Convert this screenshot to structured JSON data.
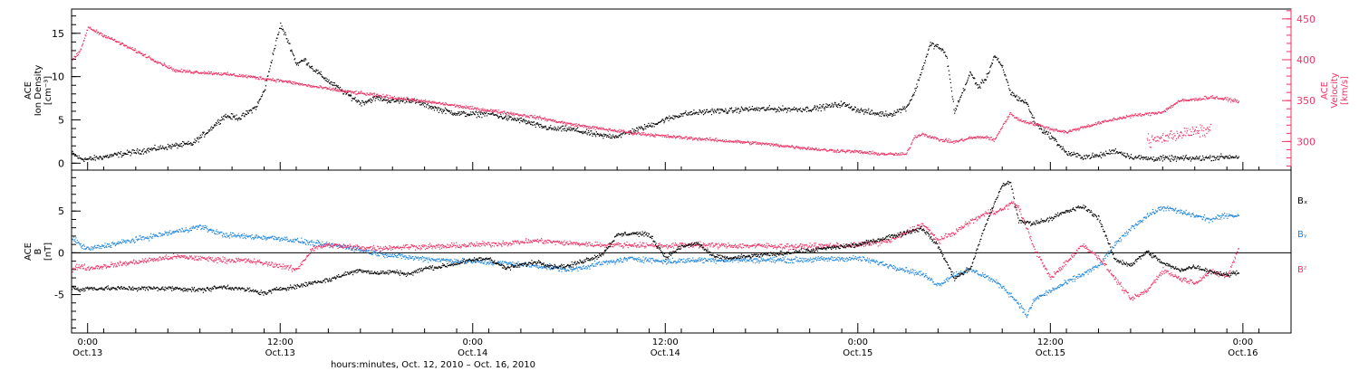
{
  "colors": {
    "black": "#000000",
    "pink": "#ee3366",
    "blue": "#1f86e0"
  },
  "x_axis": {
    "title": "hours:minutes, Oct. 12, 2010 – Oct. 16, 2010",
    "start": "2010-10-12T23:00",
    "end": "2010-10-16T03:00",
    "major_ticks": [
      {
        "at": "2010-10-13T00:00",
        "line1": "0:00",
        "line2": "Oct.13"
      },
      {
        "at": "2010-10-13T12:00",
        "line1": "12:00",
        "line2": "Oct.13"
      },
      {
        "at": "2010-10-14T00:00",
        "line1": "0:00",
        "line2": "Oct.14"
      },
      {
        "at": "2010-10-14T12:00",
        "line1": "12:00",
        "line2": "Oct.14"
      },
      {
        "at": "2010-10-15T00:00",
        "line1": "0:00",
        "line2": "Oct.15"
      },
      {
        "at": "2010-10-15T12:00",
        "line1": "12:00",
        "line2": "Oct.15"
      },
      {
        "at": "2010-10-16T00:00",
        "line1": "0:00",
        "line2": "Oct.16"
      }
    ],
    "minor_tick_hours": 2
  },
  "chart_data": [
    {
      "type": "scatter",
      "panel": "plasma",
      "ylabel_left": [
        "ACE",
        "Ion Density",
        "[cm⁻³]"
      ],
      "ylabel_right": [
        "ACE",
        "Velocity",
        "[km/s]"
      ],
      "ylim_left": [
        -0.8,
        17.8
      ],
      "yticks_left": [
        0,
        5,
        10,
        15
      ],
      "ylim_right": [
        265,
        462
      ],
      "yticks_right": [
        300,
        350,
        400,
        450
      ],
      "series": [
        {
          "name": "",
          "axis": "left",
          "color": "#000000",
          "x": [
            "2010-10-12T23:00",
            "2010-10-12T23:30",
            "2010-10-13T00:00",
            "2010-10-13T05:30",
            "2010-10-13T06:30",
            "2010-10-13T07:30",
            "2010-10-13T08:30",
            "2010-10-13T09:30",
            "2010-10-13T10:30",
            "2010-10-13T11:00",
            "2010-10-13T11:30",
            "2010-10-13T12:00",
            "2010-10-13T12:30",
            "2010-10-13T13:00",
            "2010-10-13T13:30",
            "2010-10-13T14:00",
            "2010-10-13T15:00",
            "2010-10-13T16:00",
            "2010-10-13T17:00",
            "2010-10-13T18:00",
            "2010-10-13T19:00",
            "2010-10-13T20:00",
            "2010-10-13T21:00",
            "2010-10-13T22:00",
            "2010-10-13T23:00",
            "2010-10-14T00:00",
            "2010-10-14T01:00",
            "2010-10-14T02:00",
            "2010-10-14T03:00",
            "2010-10-14T04:00",
            "2010-10-14T05:00",
            "2010-10-14T06:00",
            "2010-10-14T07:00",
            "2010-10-14T08:00",
            "2010-10-14T09:00",
            "2010-10-14T10:00",
            "2010-10-14T11:00",
            "2010-10-14T12:00",
            "2010-10-14T13:00",
            "2010-10-14T14:00",
            "2010-10-14T15:00",
            "2010-10-14T16:00",
            "2010-10-14T17:00",
            "2010-10-14T18:00",
            "2010-10-14T19:00",
            "2010-10-14T20:00",
            "2010-10-14T21:00",
            "2010-10-14T22:00",
            "2010-10-14T23:00",
            "2010-10-15T00:00",
            "2010-10-15T01:00",
            "2010-10-15T02:00",
            "2010-10-15T03:00",
            "2010-10-15T03:30",
            "2010-10-15T04:00",
            "2010-10-15T04:30",
            "2010-10-15T05:00",
            "2010-10-15T05:30",
            "2010-10-15T06:00",
            "2010-10-15T07:00",
            "2010-10-15T07:30",
            "2010-10-15T08:00",
            "2010-10-15T08:30",
            "2010-10-15T09:00",
            "2010-10-15T09:30",
            "2010-10-15T10:00",
            "2010-10-15T10:30",
            "2010-10-15T11:00",
            "2010-10-15T11:30",
            "2010-10-15T12:00",
            "2010-10-15T13:00",
            "2010-10-15T14:00",
            "2010-10-15T15:00",
            "2010-10-15T16:00",
            "2010-10-15T17:00",
            "2010-10-15T18:00",
            "2010-10-15T19:00",
            "2010-10-15T20:00",
            "2010-10-15T21:00",
            "2010-10-15T22:00",
            "2010-10-15T23:00",
            "2010-10-15T23:45"
          ],
          "y": [
            1.2,
            0.6,
            0.5,
            2.1,
            2.3,
            3.8,
            5.5,
            5.3,
            6.6,
            8.5,
            12.5,
            16.0,
            14.0,
            11.5,
            12.0,
            11.0,
            9.5,
            8.2,
            7.0,
            7.6,
            7.2,
            7.4,
            6.8,
            6.2,
            5.8,
            5.7,
            5.8,
            5.3,
            5.0,
            4.4,
            4.0,
            4.0,
            3.6,
            3.2,
            3.2,
            3.8,
            4.4,
            5.1,
            5.7,
            5.9,
            6.1,
            6.1,
            6.3,
            6.3,
            6.3,
            6.3,
            6.3,
            6.6,
            6.9,
            6.2,
            5.8,
            5.7,
            6.5,
            8.2,
            11.0,
            13.8,
            13.5,
            12.5,
            6.0,
            10.5,
            8.8,
            10.0,
            12.5,
            11.0,
            8.2,
            7.5,
            7.0,
            4.8,
            3.8,
            3.2,
            1.2,
            0.8,
            0.9,
            1.5,
            0.8,
            0.6,
            0.6,
            0.6,
            0.6,
            0.7,
            0.8,
            0.8
          ]
        },
        {
          "name": "",
          "axis": "right",
          "color": "#ee3366",
          "x": [
            "2010-10-12T23:00",
            "2010-10-12T23:30",
            "2010-10-13T00:00",
            "2010-10-13T05:30",
            "2010-10-13T08:00",
            "2010-10-13T10:00",
            "2010-10-13T12:00",
            "2010-10-13T14:00",
            "2010-10-13T16:00",
            "2010-10-13T18:00",
            "2010-10-13T20:00",
            "2010-10-13T22:00",
            "2010-10-14T00:00",
            "2010-10-14T02:00",
            "2010-10-14T04:00",
            "2010-10-14T06:00",
            "2010-10-14T08:00",
            "2010-10-14T10:00",
            "2010-10-14T12:00",
            "2010-10-14T14:00",
            "2010-10-14T16:00",
            "2010-10-14T18:00",
            "2010-10-14T20:00",
            "2010-10-14T22:00",
            "2010-10-15T00:00",
            "2010-10-15T01:00",
            "2010-10-15T02:00",
            "2010-10-15T03:00",
            "2010-10-15T03:30",
            "2010-10-15T04:00",
            "2010-10-15T05:00",
            "2010-10-15T06:00",
            "2010-10-15T07:00",
            "2010-10-15T08:00",
            "2010-10-15T08:30",
            "2010-10-15T09:00",
            "2010-10-15T09:30",
            "2010-10-15T10:00",
            "2010-10-15T11:00",
            "2010-10-15T12:00",
            "2010-10-15T13:00",
            "2010-10-15T14:00",
            "2010-10-15T15:00",
            "2010-10-15T16:00",
            "2010-10-15T17:00",
            "2010-10-15T18:00",
            "2010-10-15T19:00",
            "2010-10-15T20:00",
            "2010-10-15T21:00",
            "2010-10-15T22:00",
            "2010-10-15T23:00",
            "2010-10-15T23:45"
          ],
          "y": [
            400,
            410,
            440,
            387,
            384,
            380,
            375,
            368,
            362,
            357,
            352,
            347,
            341,
            336,
            330,
            322,
            316,
            311,
            307,
            304,
            301,
            298,
            294,
            290,
            288,
            286,
            285,
            285,
            306,
            310,
            303,
            300,
            305,
            306,
            302,
            320,
            335,
            327,
            322,
            316,
            312,
            318,
            323,
            328,
            332,
            334,
            337,
            350,
            352,
            355,
            352,
            350
          ]
        },
        {
          "name": "",
          "axis": "right",
          "color": "#ee3366",
          "x": [
            "2010-10-15T18:00",
            "2010-10-15T19:00",
            "2010-10-15T20:00",
            "2010-10-15T21:00",
            "2010-10-15T22:00"
          ],
          "y": [
            300,
            305,
            310,
            312,
            315
          ]
        }
      ]
    },
    {
      "type": "scatter",
      "panel": "magnetic",
      "ylabel_left": [
        "ACE",
        "B",
        "[nT]"
      ],
      "ylim": [
        -9.6,
        9.9
      ],
      "yticks": [
        -5,
        0,
        5
      ],
      "zero_line": true,
      "series": [
        {
          "name": "Bₓ",
          "color": "#000000",
          "x": [
            "2010-10-12T23:00",
            "2010-10-12T23:30",
            "2010-10-13T00:00",
            "2010-10-13T05:30",
            "2010-10-13T07:00",
            "2010-10-13T08:30",
            "2010-10-13T10:00",
            "2010-10-13T11:00",
            "2010-10-13T12:00",
            "2010-10-13T13:00",
            "2010-10-13T14:00",
            "2010-10-13T15:00",
            "2010-10-13T16:00",
            "2010-10-13T17:00",
            "2010-10-13T18:00",
            "2010-10-13T19:00",
            "2010-10-13T20:00",
            "2010-10-13T21:00",
            "2010-10-13T22:00",
            "2010-10-13T23:00",
            "2010-10-14T00:00",
            "2010-10-14T01:00",
            "2010-10-14T02:00",
            "2010-10-14T03:00",
            "2010-10-14T04:00",
            "2010-10-14T05:00",
            "2010-10-14T06:00",
            "2010-10-14T07:00",
            "2010-10-14T08:00",
            "2010-10-14T09:00",
            "2010-10-14T10:00",
            "2010-10-14T11:00",
            "2010-10-14T12:00",
            "2010-10-14T13:00",
            "2010-10-14T14:00",
            "2010-10-14T15:00",
            "2010-10-14T16:00",
            "2010-10-14T17:00",
            "2010-10-14T18:00",
            "2010-10-14T19:00",
            "2010-10-14T20:00",
            "2010-10-14T21:00",
            "2010-10-14T22:00",
            "2010-10-14T23:00",
            "2010-10-15T00:00",
            "2010-10-15T01:00",
            "2010-10-15T02:00",
            "2010-10-15T03:00",
            "2010-10-15T04:00",
            "2010-10-15T05:00",
            "2010-10-15T06:00",
            "2010-10-15T07:00",
            "2010-10-15T08:00",
            "2010-10-15T09:00",
            "2010-10-15T09:30",
            "2010-10-15T10:00",
            "2010-10-15T11:00",
            "2010-10-15T12:00",
            "2010-10-15T13:00",
            "2010-10-15T14:00",
            "2010-10-15T15:00",
            "2010-10-15T16:00",
            "2010-10-15T17:00",
            "2010-10-15T18:00",
            "2010-10-15T19:00",
            "2010-10-15T20:00",
            "2010-10-15T21:00",
            "2010-10-15T22:00",
            "2010-10-15T23:00",
            "2010-10-15T23:45"
          ],
          "y": [
            -4.0,
            -4.4,
            -4.2,
            -4.2,
            -4.4,
            -4.0,
            -4.4,
            -4.8,
            -4.2,
            -4.0,
            -3.5,
            -3.2,
            -2.5,
            -2.0,
            -2.4,
            -2.2,
            -2.5,
            -1.8,
            -1.6,
            -1.2,
            -0.8,
            -0.6,
            -1.8,
            -1.4,
            -1.0,
            -1.6,
            -1.5,
            -0.8,
            -0.2,
            2.2,
            2.4,
            2.2,
            -0.5,
            0.8,
            1.2,
            -0.4,
            -0.6,
            -0.4,
            -0.2,
            -0.1,
            0.2,
            0.3,
            0.6,
            0.8,
            1.0,
            1.5,
            2.0,
            2.5,
            3.0,
            0.8,
            -3.0,
            -1.8,
            3.8,
            8.2,
            8.5,
            3.8,
            3.6,
            4.2,
            5.0,
            5.6,
            4.2,
            -0.8,
            -1.4,
            0.2,
            -1.2,
            -2.0,
            -1.6,
            -2.2,
            -2.6,
            -2.2
          ]
        },
        {
          "name": "Bᵧ",
          "color": "#1f86e0",
          "x": [
            "2010-10-12T23:00",
            "2010-10-12T23:30",
            "2010-10-13T00:00",
            "2010-10-13T05:30",
            "2010-10-13T07:00",
            "2010-10-13T08:30",
            "2010-10-13T10:00",
            "2010-10-13T12:00",
            "2010-10-13T14:00",
            "2010-10-13T16:00",
            "2010-10-13T18:00",
            "2010-10-13T20:00",
            "2010-10-13T22:00",
            "2010-10-14T00:00",
            "2010-10-14T02:00",
            "2010-10-14T04:00",
            "2010-10-14T06:00",
            "2010-10-14T08:00",
            "2010-10-14T10:00",
            "2010-10-14T12:00",
            "2010-10-14T14:00",
            "2010-10-14T16:00",
            "2010-10-14T18:00",
            "2010-10-14T20:00",
            "2010-10-14T22:00",
            "2010-10-15T00:00",
            "2010-10-15T01:00",
            "2010-10-15T02:00",
            "2010-10-15T03:00",
            "2010-10-15T04:00",
            "2010-10-15T05:00",
            "2010-10-15T06:00",
            "2010-10-15T07:00",
            "2010-10-15T08:00",
            "2010-10-15T09:00",
            "2010-10-15T10:00",
            "2010-10-15T10:30",
            "2010-10-15T11:00",
            "2010-10-15T12:00",
            "2010-10-15T13:00",
            "2010-10-15T14:00",
            "2010-10-15T15:00",
            "2010-10-15T16:00",
            "2010-10-15T17:00",
            "2010-10-15T18:00",
            "2010-10-15T19:00",
            "2010-10-15T20:00",
            "2010-10-15T21:00",
            "2010-10-15T22:00",
            "2010-10-15T23:00",
            "2010-10-15T23:45"
          ],
          "y": [
            2.0,
            1.0,
            0.5,
            2.6,
            3.2,
            2.2,
            2.0,
            1.8,
            1.2,
            0.8,
            0.0,
            -0.5,
            -0.8,
            -1.0,
            -1.2,
            -1.5,
            -2.0,
            -1.2,
            -0.6,
            -1.0,
            -0.8,
            -0.8,
            -0.8,
            -0.8,
            -0.7,
            -0.6,
            -1.0,
            -1.5,
            -2.0,
            -2.5,
            -3.8,
            -2.5,
            -2.0,
            -2.8,
            -4.0,
            -6.0,
            -7.5,
            -5.5,
            -4.5,
            -3.5,
            -2.5,
            -1.5,
            1.0,
            3.0,
            4.5,
            5.5,
            5.0,
            4.5,
            4.0,
            4.6,
            4.5
          ]
        },
        {
          "name": "Bᶻ",
          "color": "#ee3366",
          "x": [
            "2010-10-12T23:00",
            "2010-10-12T23:30",
            "2010-10-13T00:00",
            "2010-10-13T05:30",
            "2010-10-13T07:00",
            "2010-10-13T08:30",
            "2010-10-13T10:00",
            "2010-10-13T12:00",
            "2010-10-13T13:00",
            "2010-10-13T14:00",
            "2010-10-13T15:00",
            "2010-10-13T16:00",
            "2010-10-13T18:00",
            "2010-10-13T20:00",
            "2010-10-13T22:00",
            "2010-10-14T00:00",
            "2010-10-14T02:00",
            "2010-10-14T04:00",
            "2010-10-14T06:00",
            "2010-10-14T08:00",
            "2010-10-14T10:00",
            "2010-10-14T12:00",
            "2010-10-14T14:00",
            "2010-10-14T16:00",
            "2010-10-14T18:00",
            "2010-10-14T20:00",
            "2010-10-14T22:00",
            "2010-10-15T00:00",
            "2010-10-15T02:00",
            "2010-10-15T03:00",
            "2010-10-15T04:00",
            "2010-10-15T05:00",
            "2010-10-15T06:00",
            "2010-10-15T07:00",
            "2010-10-15T08:00",
            "2010-10-15T09:00",
            "2010-10-15T09:30",
            "2010-10-15T10:00",
            "2010-10-15T11:00",
            "2010-10-15T12:00",
            "2010-10-15T13:00",
            "2010-10-15T14:00",
            "2010-10-15T15:00",
            "2010-10-15T16:00",
            "2010-10-15T17:00",
            "2010-10-15T18:00",
            "2010-10-15T19:00",
            "2010-10-15T20:00",
            "2010-10-15T21:00",
            "2010-10-15T22:00",
            "2010-10-15T23:00",
            "2010-10-15T23:45"
          ],
          "y": [
            -2.0,
            -1.5,
            -1.8,
            -0.4,
            -0.6,
            -0.8,
            -0.9,
            -1.5,
            -2.0,
            0.6,
            1.0,
            0.8,
            0.6,
            0.8,
            0.8,
            1.0,
            1.2,
            1.5,
            1.2,
            1.0,
            1.0,
            0.9,
            1.0,
            0.9,
            0.9,
            0.8,
            0.9,
            1.0,
            1.5,
            2.5,
            3.5,
            1.5,
            2.5,
            3.8,
            4.8,
            5.2,
            6.0,
            5.5,
            0.5,
            -3.0,
            -1.0,
            1.0,
            -0.5,
            -3.0,
            -5.5,
            -4.5,
            -2.0,
            -3.0,
            -3.5,
            -2.2,
            -2.8,
            0.8
          ]
        }
      ]
    }
  ]
}
